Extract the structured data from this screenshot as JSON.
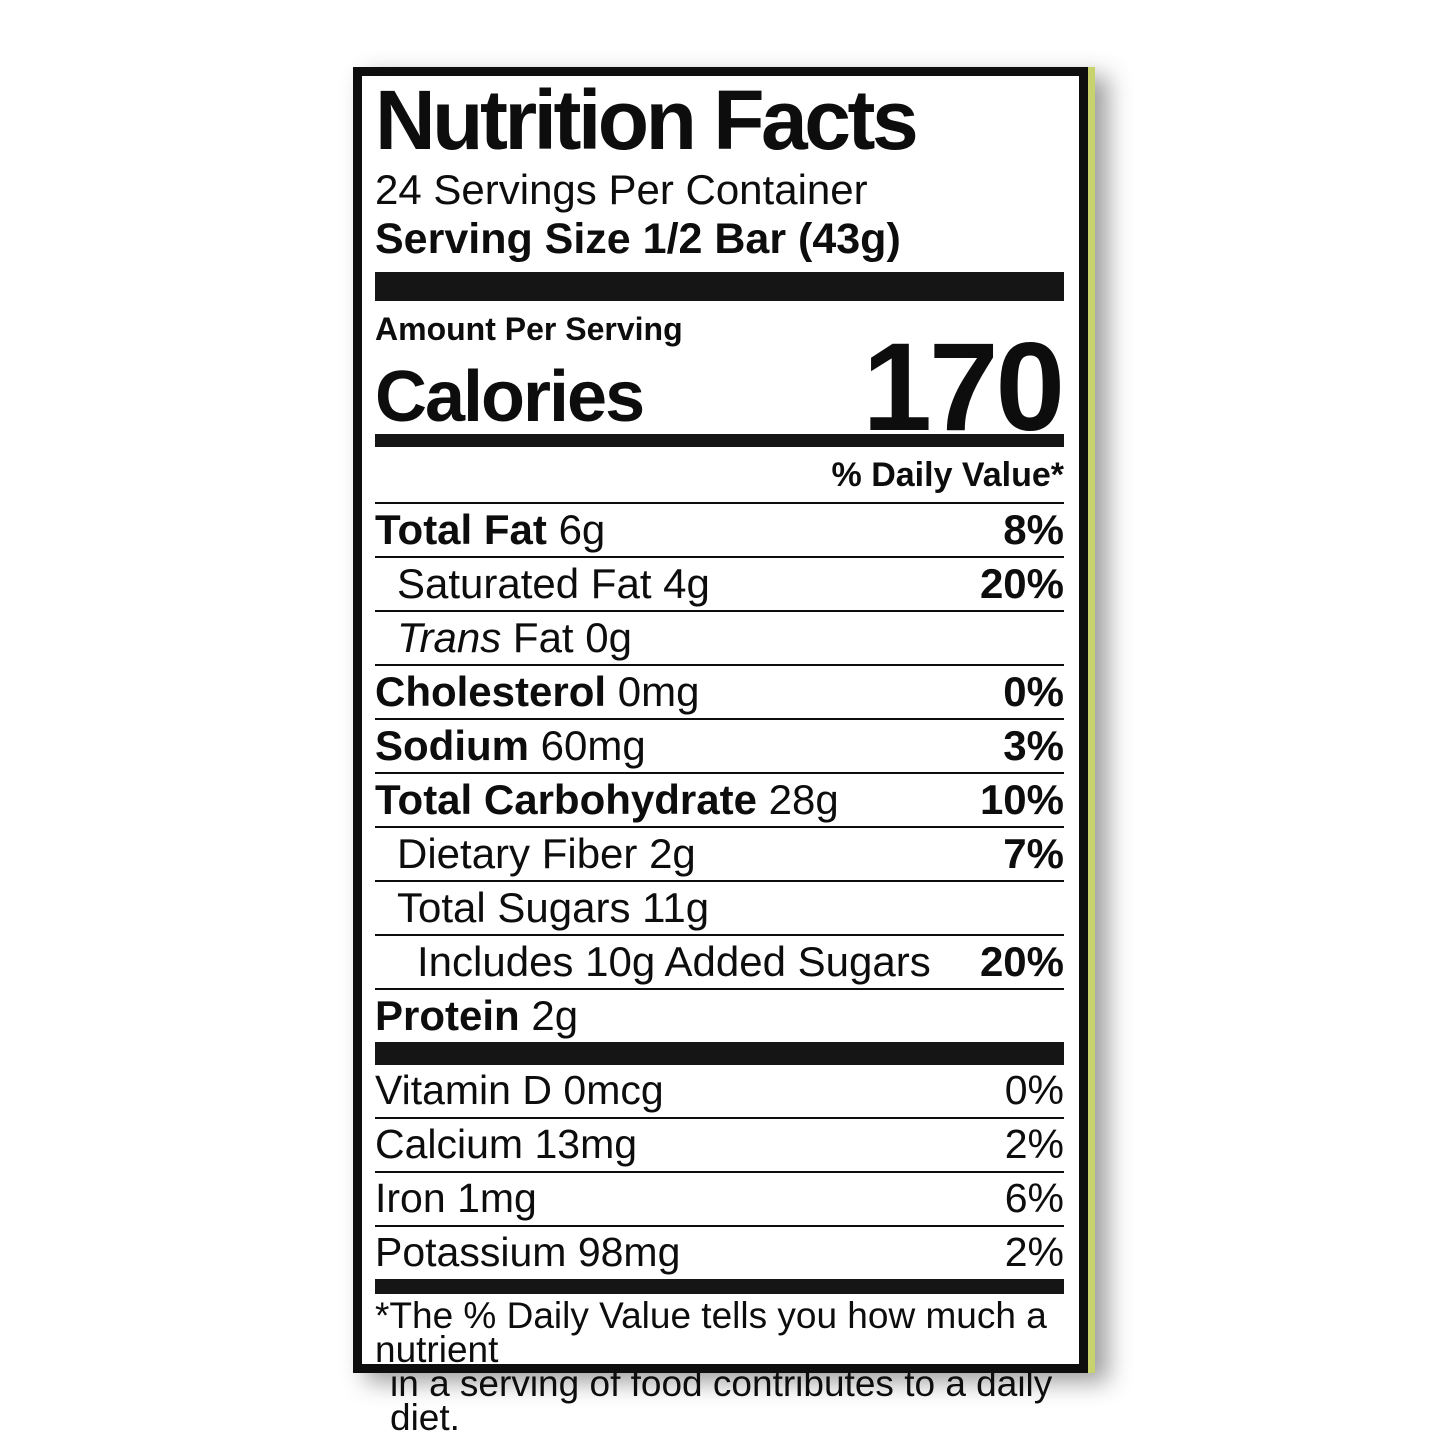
{
  "label": {
    "title": "Nutrition Facts",
    "servings_per_container": "24 Servings Per Container",
    "serving_size": "Serving Size 1/2 Bar (43g)",
    "amount_per_serving": "Amount Per Serving",
    "calories_label": "Calories",
    "calories_value": "170",
    "daily_value_header": "% Daily Value*",
    "nutrients": [
      {
        "name": "Total Fat",
        "amount": "6g",
        "dv": "8%"
      },
      {
        "name": "Saturated Fat",
        "amount": "4g",
        "dv": "20%"
      },
      {
        "name_italic": "Trans",
        "name": "Fat",
        "amount": "0g",
        "dv": ""
      },
      {
        "name": "Cholesterol",
        "amount": "0mg",
        "dv": "0%"
      },
      {
        "name": "Sodium",
        "amount": "60mg",
        "dv": "3%"
      },
      {
        "name": "Total Carbohydrate",
        "amount": "28g",
        "dv": "10%"
      },
      {
        "name": "Dietary Fiber",
        "amount": "2g",
        "dv": "7%"
      },
      {
        "name": "Total Sugars",
        "amount": "11g",
        "dv": ""
      },
      {
        "name": "Includes 10g Added Sugars",
        "amount": "",
        "dv": "20%"
      },
      {
        "name": "Protein",
        "amount": "2g",
        "dv": ""
      }
    ],
    "micronutrients": [
      {
        "name": "Vitamin D",
        "amount": "0mcg",
        "dv": "0%"
      },
      {
        "name": "Calcium",
        "amount": "13mg",
        "dv": "2%"
      },
      {
        "name": "Iron",
        "amount": "1mg",
        "dv": "6%"
      },
      {
        "name": "Potassium",
        "amount": "98mg",
        "dv": "2%"
      }
    ],
    "footnote_line1": "*The % Daily Value tells you how much a nutrient",
    "footnote_line2": "in a serving of food contributes to a daily diet.",
    "colors": {
      "ink": "#0d0d0d",
      "package_edge": "#c9d36d",
      "background": "#ffffff"
    }
  }
}
